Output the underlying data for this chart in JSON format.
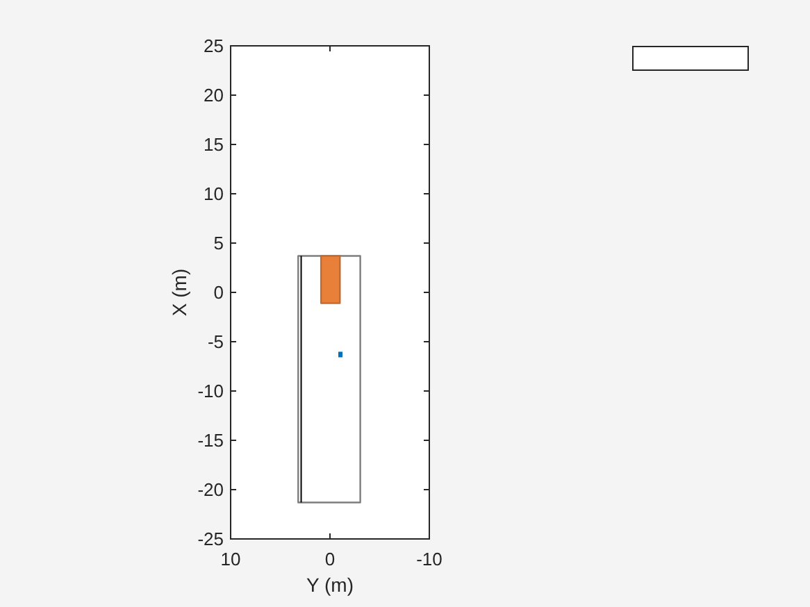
{
  "chart_data": {
    "type": "line",
    "xlabel": "Y (m)",
    "ylabel": "X (m)",
    "xlim": [
      10,
      -10
    ],
    "xticks": [
      10,
      0,
      -10
    ],
    "ylim": [
      -25,
      25
    ],
    "yticks": [
      -25,
      -20,
      -15,
      -10,
      -5,
      0,
      5,
      10,
      15,
      20,
      25
    ],
    "grid": false,
    "series": [
      {
        "type": "area",
        "color": "#ffffff",
        "x": [
          3.2,
          -3.05,
          -3.05,
          3.2
        ],
        "values": [
          3.7,
          3.7,
          -21.3,
          -21.3
        ]
      },
      {
        "color": "#000000",
        "x": [
          2.9,
          2.9
        ],
        "values": [
          3.7,
          -21.3
        ]
      },
      {
        "type": "area",
        "color": "#e8803a",
        "x": [
          0.9,
          -1.0,
          -1.0,
          0.9,
          0.9
        ],
        "values": [
          3.7,
          3.7,
          -1.1,
          -1.1,
          3.7
        ]
      },
      {
        "type": "scatter",
        "marker": "square",
        "color": "#0072bd",
        "x": [
          -1.05
        ],
        "values": [
          -6.3
        ]
      }
    ]
  }
}
